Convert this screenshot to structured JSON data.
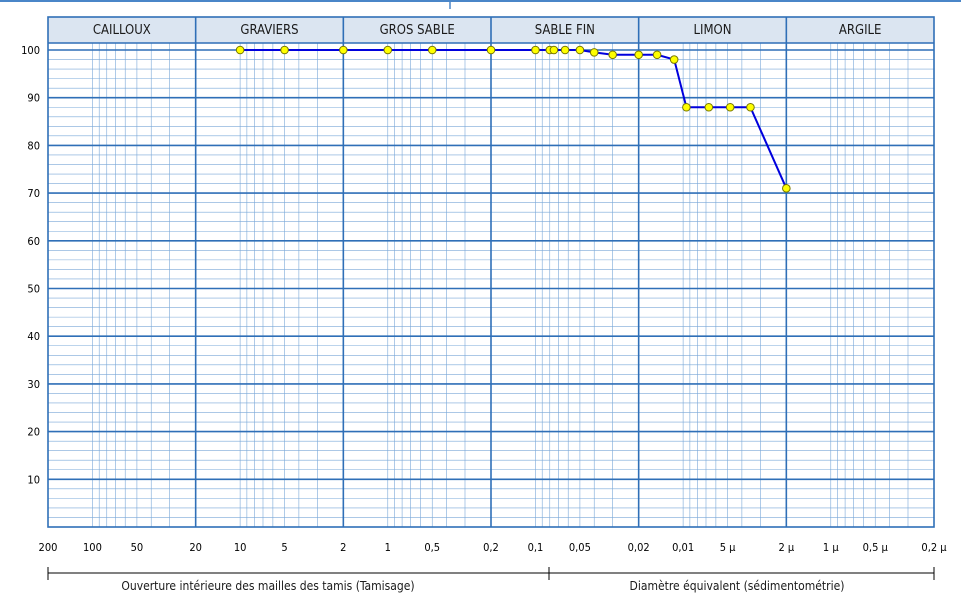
{
  "chart_data": {
    "type": "line",
    "title": "",
    "xlabel": "",
    "ylabel": "",
    "x_scale": "log",
    "x_direction": "decreasing",
    "x_range_mm": [
      200,
      0.0002
    ],
    "y_range": [
      0,
      105
    ],
    "grid": true,
    "legend": "none",
    "y_ticks": [
      10,
      20,
      30,
      40,
      50,
      60,
      70,
      80,
      90,
      100
    ],
    "x_tick_labels": [
      "200",
      "100",
      "50",
      "20",
      "10",
      "5",
      "2",
      "1",
      "0,5",
      "0,2",
      "0,1",
      "0,05",
      "0,02",
      "0,01",
      "5 μ",
      "2 μ",
      "1 μ",
      "0,5 μ",
      "0,2 μ"
    ],
    "x_tick_values_mm": [
      200,
      100,
      50,
      20,
      10,
      5,
      2,
      1,
      0.5,
      0.2,
      0.1,
      0.05,
      0.02,
      0.01,
      0.005,
      0.002,
      0.001,
      0.0005,
      0.0002
    ],
    "categories": [
      "CAILLOUX",
      "GRAVIERS",
      "GROS SABLE",
      "SABLE FIN",
      "LIMON",
      "ARGILE"
    ],
    "captions": {
      "sieving": "Ouverture intérieure des mailles des tamis (Tamisage)",
      "sedimentometry": "Diamètre équivalent (sédimentométrie)"
    },
    "series": [
      {
        "x": [
          10,
          5,
          2,
          1,
          0.5,
          0.2,
          0.1,
          0.08,
          0.075,
          0.063,
          0.05,
          0.04,
          0.03,
          0.02,
          0.015,
          0.0115,
          0.0095,
          0.0067,
          0.0048,
          0.0035,
          0.002
        ],
        "y": [
          100,
          100,
          100,
          100,
          100,
          100,
          100,
          100,
          100,
          100,
          100,
          99.5,
          99,
          99,
          99,
          98,
          88,
          88,
          88,
          88,
          71
        ]
      }
    ],
    "colors": {
      "line": "#0000dd",
      "marker_fill": "#ffff00",
      "marker_stroke": "#777700",
      "grid_major": "#2f6fb7",
      "grid_minor": "#7aa8d8",
      "header_bg": "#dbe5f1",
      "frame": "#2f6fb7"
    }
  }
}
